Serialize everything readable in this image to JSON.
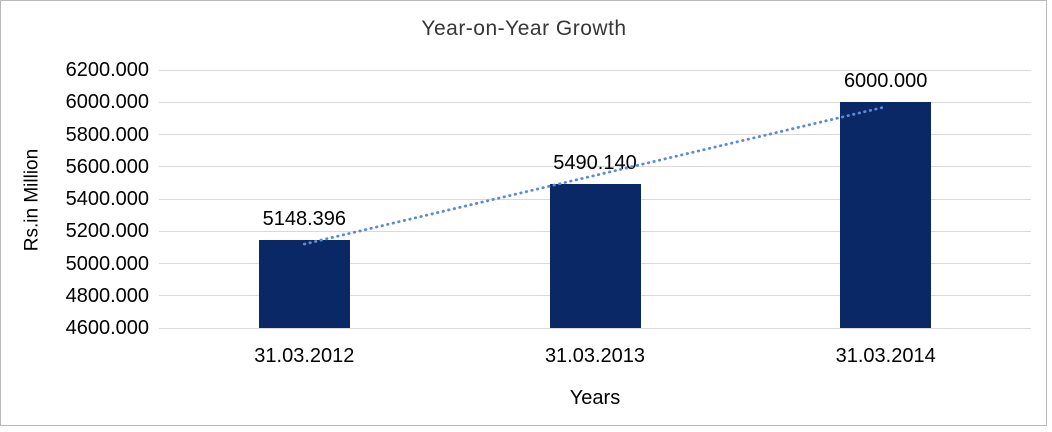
{
  "chart_data": {
    "type": "bar",
    "title": "Year-on-Year Growth",
    "xlabel": "Years",
    "ylabel": "Rs.in Million",
    "categories": [
      "31.03.2012",
      "31.03.2013",
      "31.03.2014"
    ],
    "values": [
      5148.396,
      5490.14,
      6000.0
    ],
    "value_labels": [
      "5148.396",
      "5490.140",
      "6000.000"
    ],
    "ylim": [
      4600,
      6200
    ],
    "ytick_step": 200,
    "ytick_labels": [
      "6200.000",
      "6000.000",
      "5800.000",
      "5600.000",
      "5400.000",
      "5200.000",
      "5000.000",
      "4800.000",
      "4600.000"
    ],
    "grid": true,
    "legend": "none",
    "bar_color": "#0a2866",
    "gridline_color": "#d9d9d9",
    "trendline": {
      "type": "linear",
      "style": "dotted",
      "color": "#5b8bd5"
    }
  }
}
